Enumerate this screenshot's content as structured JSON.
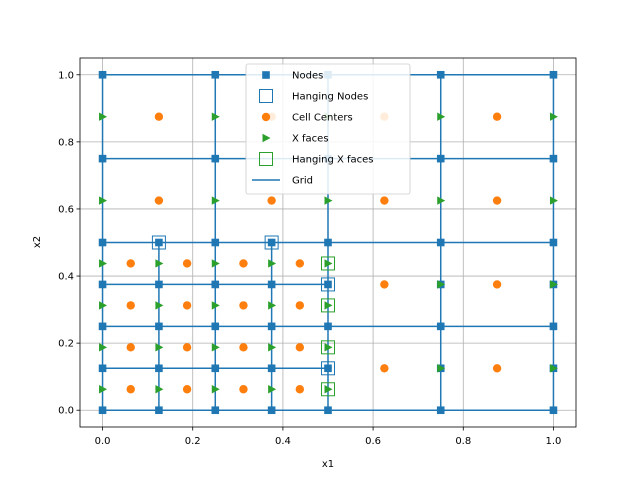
{
  "chart_data": {
    "type": "scatter",
    "title": "",
    "xlabel": "x1",
    "ylabel": "x2",
    "xlim": [
      -0.05,
      1.05
    ],
    "ylim": [
      -0.05,
      1.05
    ],
    "grid": true,
    "legend_position": "top-center",
    "x_ticks": [
      0.0,
      0.2,
      0.4,
      0.6,
      0.8,
      1.0
    ],
    "y_ticks": [
      0.0,
      0.2,
      0.4,
      0.6,
      0.8,
      1.0
    ],
    "x_tick_labels": [
      "0.0",
      "0.2",
      "0.4",
      "0.6",
      "0.8",
      "1.0"
    ],
    "y_tick_labels": [
      "0.0",
      "0.2",
      "0.4",
      "0.6",
      "0.8",
      "1.0"
    ],
    "colors": {
      "blue": "#1f77b4",
      "orange": "#ff7f0e",
      "green": "#2ca02c",
      "grid": "#b0b0b0"
    },
    "grid_lines": {
      "note": "mesh: 4x4 coarse cells on [0,1]^2 with lower-left quadrant refined to 0.125",
      "horizontal": [
        {
          "y": 0.0,
          "x0": 0.0,
          "x1": 1.0
        },
        {
          "y": 0.125,
          "x0": 0.0,
          "x1": 0.5
        },
        {
          "y": 0.25,
          "x0": 0.0,
          "x1": 1.0
        },
        {
          "y": 0.375,
          "x0": 0.0,
          "x1": 0.5
        },
        {
          "y": 0.5,
          "x0": 0.0,
          "x1": 1.0
        },
        {
          "y": 0.75,
          "x0": 0.0,
          "x1": 1.0
        },
        {
          "y": 1.0,
          "x0": 0.0,
          "x1": 1.0
        }
      ],
      "vertical": [
        {
          "x": 0.0,
          "y0": 0.0,
          "y1": 1.0
        },
        {
          "x": 0.125,
          "y0": 0.0,
          "y1": 0.5
        },
        {
          "x": 0.25,
          "y0": 0.0,
          "y1": 1.0
        },
        {
          "x": 0.375,
          "y0": 0.0,
          "y1": 0.5
        },
        {
          "x": 0.5,
          "y0": 0.0,
          "y1": 1.0
        },
        {
          "x": 0.75,
          "y0": 0.0,
          "y1": 1.0
        },
        {
          "x": 1.0,
          "y0": 0.0,
          "y1": 1.0
        }
      ]
    },
    "series": [
      {
        "name": "Nodes",
        "marker": "square",
        "color": "#1f77b4",
        "points": [
          [
            0,
            0
          ],
          [
            0.125,
            0
          ],
          [
            0.25,
            0
          ],
          [
            0.375,
            0
          ],
          [
            0.5,
            0
          ],
          [
            0.75,
            0
          ],
          [
            1,
            0
          ],
          [
            0,
            0.125
          ],
          [
            0.125,
            0.125
          ],
          [
            0.25,
            0.125
          ],
          [
            0.375,
            0.125
          ],
          [
            0.5,
            0.125
          ],
          [
            0.75,
            0.125
          ],
          [
            1,
            0.125
          ],
          [
            0,
            0.25
          ],
          [
            0.125,
            0.25
          ],
          [
            0.25,
            0.25
          ],
          [
            0.375,
            0.25
          ],
          [
            0.5,
            0.25
          ],
          [
            0.75,
            0.25
          ],
          [
            1,
            0.25
          ],
          [
            0,
            0.375
          ],
          [
            0.125,
            0.375
          ],
          [
            0.25,
            0.375
          ],
          [
            0.375,
            0.375
          ],
          [
            0.5,
            0.375
          ],
          [
            0.75,
            0.375
          ],
          [
            1,
            0.375
          ],
          [
            0,
            0.5
          ],
          [
            0.125,
            0.5
          ],
          [
            0.25,
            0.5
          ],
          [
            0.375,
            0.5
          ],
          [
            0.5,
            0.5
          ],
          [
            0.75,
            0.5
          ],
          [
            1,
            0.5
          ],
          [
            0,
            0.75
          ],
          [
            0.25,
            0.75
          ],
          [
            0.5,
            0.75
          ],
          [
            0.75,
            0.75
          ],
          [
            1,
            0.75
          ],
          [
            0,
            1
          ],
          [
            0.25,
            1
          ],
          [
            0.5,
            1
          ],
          [
            0.75,
            1
          ],
          [
            1,
            1
          ]
        ]
      },
      {
        "name": "Hanging Nodes",
        "marker": "open-square",
        "color": "#1f77b4",
        "points": [
          [
            0.125,
            0.5
          ],
          [
            0.375,
            0.5
          ],
          [
            0.5,
            0.125
          ],
          [
            0.5,
            0.375
          ]
        ]
      },
      {
        "name": "Cell Centers",
        "marker": "circle",
        "color": "#ff7f0e",
        "points": [
          [
            0.0625,
            0.0625
          ],
          [
            0.1875,
            0.0625
          ],
          [
            0.3125,
            0.0625
          ],
          [
            0.4375,
            0.0625
          ],
          [
            0.0625,
            0.1875
          ],
          [
            0.1875,
            0.1875
          ],
          [
            0.3125,
            0.1875
          ],
          [
            0.4375,
            0.1875
          ],
          [
            0.0625,
            0.3125
          ],
          [
            0.1875,
            0.3125
          ],
          [
            0.3125,
            0.3125
          ],
          [
            0.4375,
            0.3125
          ],
          [
            0.0625,
            0.4375
          ],
          [
            0.1875,
            0.4375
          ],
          [
            0.3125,
            0.4375
          ],
          [
            0.4375,
            0.4375
          ],
          [
            0.625,
            0.125
          ],
          [
            0.875,
            0.125
          ],
          [
            0.625,
            0.375
          ],
          [
            0.875,
            0.375
          ],
          [
            0.125,
            0.625
          ],
          [
            0.375,
            0.625
          ],
          [
            0.625,
            0.625
          ],
          [
            0.875,
            0.625
          ],
          [
            0.125,
            0.875
          ],
          [
            0.375,
            0.875
          ],
          [
            0.625,
            0.875
          ],
          [
            0.875,
            0.875
          ]
        ]
      },
      {
        "name": "X faces",
        "marker": "triangle-right",
        "color": "#2ca02c",
        "points": [
          [
            0,
            0.0625
          ],
          [
            0.125,
            0.0625
          ],
          [
            0.25,
            0.0625
          ],
          [
            0.375,
            0.0625
          ],
          [
            0.5,
            0.0625
          ],
          [
            0,
            0.1875
          ],
          [
            0.125,
            0.1875
          ],
          [
            0.25,
            0.1875
          ],
          [
            0.375,
            0.1875
          ],
          [
            0.5,
            0.1875
          ],
          [
            0,
            0.3125
          ],
          [
            0.125,
            0.3125
          ],
          [
            0.25,
            0.3125
          ],
          [
            0.375,
            0.3125
          ],
          [
            0.5,
            0.3125
          ],
          [
            0,
            0.4375
          ],
          [
            0.125,
            0.4375
          ],
          [
            0.25,
            0.4375
          ],
          [
            0.375,
            0.4375
          ],
          [
            0.5,
            0.4375
          ],
          [
            0.75,
            0.125
          ],
          [
            1,
            0.125
          ],
          [
            0.75,
            0.375
          ],
          [
            1,
            0.375
          ],
          [
            0,
            0.625
          ],
          [
            0.25,
            0.625
          ],
          [
            0.5,
            0.625
          ],
          [
            0.75,
            0.625
          ],
          [
            1,
            0.625
          ],
          [
            0,
            0.875
          ],
          [
            0.25,
            0.875
          ],
          [
            0.5,
            0.875
          ],
          [
            0.75,
            0.875
          ],
          [
            1,
            0.875
          ]
        ]
      },
      {
        "name": "Hanging X faces",
        "marker": "open-square",
        "color": "#2ca02c",
        "points": [
          [
            0.5,
            0.0625
          ],
          [
            0.5,
            0.1875
          ],
          [
            0.5,
            0.3125
          ],
          [
            0.5,
            0.4375
          ]
        ]
      },
      {
        "name": "Grid",
        "marker": "line",
        "color": "#1f77b4",
        "points": []
      }
    ],
    "legend": [
      "Nodes",
      "Hanging Nodes",
      "Cell Centers",
      "X faces",
      "Hanging X faces",
      "Grid"
    ]
  }
}
